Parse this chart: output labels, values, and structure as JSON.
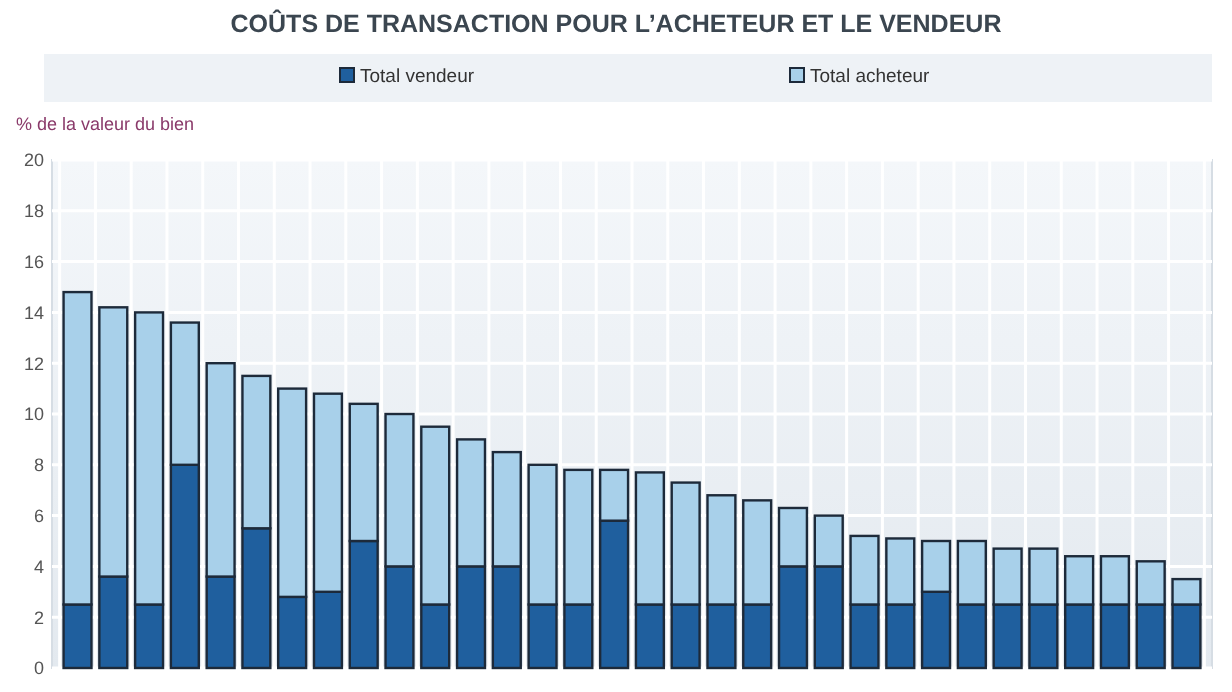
{
  "chart_data": {
    "type": "bar",
    "title": "COÛTS DE TRANSACTION POUR L’ACHETEUR ET LE VENDEUR",
    "ylabel": "% de la valeur du bien",
    "stacked": true,
    "categories": [
      null,
      null,
      null,
      null,
      null,
      null,
      null,
      null,
      null,
      null,
      null,
      null,
      null,
      null,
      null,
      null,
      null,
      null,
      null,
      null,
      null,
      null,
      null,
      null,
      null,
      null,
      null,
      null,
      null,
      null,
      null,
      null
    ],
    "series": [
      {
        "name": "Total vendeur",
        "color": "#1f5f9e",
        "values": [
          2.5,
          3.6,
          2.5,
          8.0,
          3.6,
          5.5,
          2.8,
          3.0,
          5.0,
          4.0,
          2.5,
          4.0,
          4.0,
          2.5,
          2.5,
          5.8,
          2.5,
          2.5,
          2.5,
          2.5,
          4.0,
          4.0,
          2.5,
          2.5,
          3.0,
          2.5,
          2.5,
          2.5,
          2.5,
          2.5,
          2.5,
          2.5
        ]
      },
      {
        "name": "Total acheteur",
        "color": "#a8d0ea",
        "values": [
          12.3,
          10.6,
          11.5,
          5.6,
          8.4,
          6.0,
          8.2,
          7.8,
          5.4,
          6.0,
          7.0,
          5.0,
          4.5,
          5.5,
          5.3,
          2.0,
          5.2,
          4.8,
          4.3,
          4.1,
          2.3,
          2.0,
          2.7,
          2.6,
          2.0,
          2.5,
          2.2,
          2.2,
          1.9,
          1.9,
          1.7,
          1.0
        ]
      }
    ],
    "ylim": [
      0,
      20
    ],
    "yticks": [
      0,
      2,
      4,
      6,
      8,
      10,
      12,
      14,
      16,
      18,
      20
    ],
    "grid": true,
    "legend": "top"
  }
}
